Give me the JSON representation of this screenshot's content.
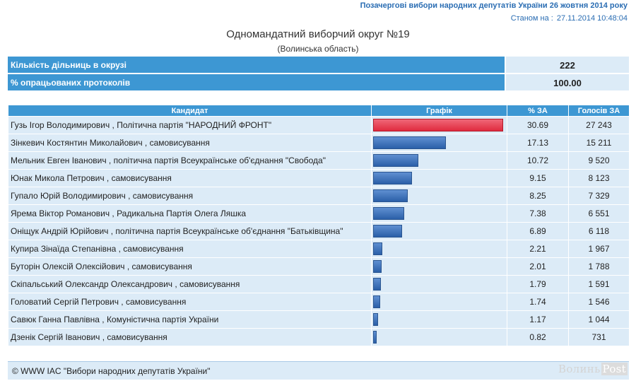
{
  "header": {
    "banner": "Позачергові вибори народних депутатів України 26 жовтня 2014 року",
    "status_label": "Станом на :",
    "status_value": "27.11.2014 10:48:04"
  },
  "district": {
    "title": "Одномандатний виборчий округ №19",
    "region": "(Волинська область)"
  },
  "summary": [
    {
      "label": "Кількість дільниць в окрузі",
      "value": "222"
    },
    {
      "label": "% опрацьованих протоколів",
      "value": "100.00"
    }
  ],
  "table": {
    "headers": {
      "candidate": "Кандидат",
      "graph": "Графік",
      "percent": "% ЗА",
      "votes": "Голосів ЗА"
    }
  },
  "chart_data": {
    "type": "bar",
    "title": "Одномандатний виборчий округ №19",
    "categories": [
      "Гузь Ігор Володимирович , Політична партія \"НАРОДНИЙ ФРОНТ\"",
      "Зінкевич Костянтин Миколайович , самовисування",
      "Мельник Евген Іванович , політична партія Всеукраїнське об'єднання \"Свобода\"",
      "Юнак Микола Петрович , самовисування",
      "Гупало Юрій Володимирович , самовисування",
      "Ярема Віктор Романович , Радикальна Партія Олега Ляшка",
      "Оніщук Андрій Юрійович , політична партія Всеукраїнське об'єднання \"Батьківщина\"",
      "Купира Зінаїда Степанівна , самовисування",
      "Буторін Олексій Олексійович , самовисування",
      "Скіпальський Олександр Олександрович , самовисування",
      "Головатий Сергій Петрович , самовисування",
      "Савюк Ганна Павлівна , Комуністична партія України",
      "Дзенік Сергій Іванович , самовисування"
    ],
    "percent_labels": [
      "30.69",
      "17.13",
      "10.72",
      "9.15",
      "8.25",
      "7.38",
      "6.89",
      "2.21",
      "2.01",
      "1.79",
      "1.74",
      "1.17",
      "0.82"
    ],
    "values": [
      30.69,
      17.13,
      10.72,
      9.15,
      8.25,
      7.38,
      6.89,
      2.21,
      2.01,
      1.79,
      1.74,
      1.17,
      0.82
    ],
    "votes": [
      "27 243",
      "15 211",
      "9 520",
      "8 123",
      "7 329",
      "6 551",
      "6 118",
      "1 967",
      "1 788",
      "1 591",
      "1 546",
      "1 044",
      "731"
    ],
    "xlim": [
      0,
      30.69
    ],
    "leader_color": "#e8384c",
    "bar_color": "#3a6fbf"
  },
  "footer": {
    "copyright": "© WWW IAC \"Вибори народних депутатів України\"",
    "watermark_main": "Волинь",
    "watermark_post": "Post"
  }
}
